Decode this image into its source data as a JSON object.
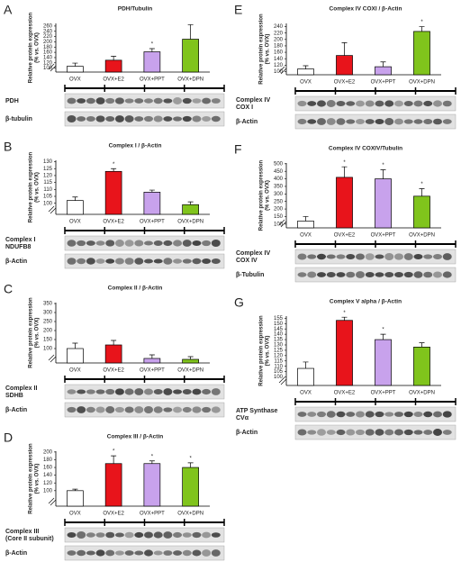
{
  "chart_data": [
    {
      "type": "bar",
      "panel": "A",
      "title": "PDH/Tubulin",
      "ylabel": [
        "Relative protein expression",
        "(% vs. OVX)"
      ],
      "categories": [
        "OVX",
        "OVX+E2",
        "OVX+PPT",
        "OVX+DPN"
      ],
      "values": [
        107,
        130,
        162,
        210
      ],
      "errors": [
        12,
        15,
        12,
        55
      ],
      "colors": [
        "#ffffff",
        "#e8141b",
        "#c8a2ec",
        "#80c41c"
      ],
      "ylim": [
        85,
        270
      ],
      "yticks": [
        100,
        120,
        140,
        160,
        180,
        200,
        220,
        240,
        260
      ],
      "significance": [
        false,
        false,
        true,
        false
      ],
      "significance_label": "*",
      "blot_labels": [
        [
          "PDH"
        ],
        [
          "β-tubulin"
        ]
      ]
    },
    {
      "type": "bar",
      "panel": "B",
      "title": "Complex I / β-Actin",
      "ylabel": [
        "Relative protein expression",
        "(% vs. OVX)"
      ],
      "categories": [
        "OVX",
        "OVX+E2",
        "OVX+PPT",
        "OVX+DPN"
      ],
      "values": [
        102,
        123,
        108,
        99
      ],
      "errors": [
        2.5,
        2,
        1.5,
        2
      ],
      "colors": [
        "#ffffff",
        "#e8141b",
        "#c8a2ec",
        "#80c41c"
      ],
      "ylim": [
        92,
        131
      ],
      "yticks": [
        100,
        105,
        110,
        115,
        120,
        125,
        130
      ],
      "significance": [
        false,
        true,
        false,
        false
      ],
      "significance_label": "*",
      "blot_labels": [
        [
          "Complex I",
          "NDUFB8"
        ],
        [
          "β-Actin"
        ]
      ]
    },
    {
      "type": "bar",
      "panel": "C",
      "title": "Complex II / β-Actin",
      "ylabel": [
        "Relative protein expression",
        "(% vs. OVX)"
      ],
      "categories": [
        "OVX",
        "OVX+E2",
        "OVX+PPT",
        "OVX+DPN"
      ],
      "values": [
        100,
        120,
        45,
        40
      ],
      "errors": [
        30,
        25,
        20,
        15
      ],
      "colors": [
        "#ffffff",
        "#e8141b",
        "#c8a2ec",
        "#80c41c"
      ],
      "ylim": [
        20,
        355
      ],
      "yticks": [
        100,
        150,
        200,
        250,
        300,
        350
      ],
      "significance": [
        false,
        false,
        false,
        false
      ],
      "significance_label": "*",
      "blot_labels": [
        [
          "Complex II",
          "SDHB"
        ],
        [
          "β-Actin"
        ]
      ]
    },
    {
      "type": "bar",
      "panel": "D",
      "title": "Complex III / β-Actin",
      "ylabel": [
        "Relative protein expression",
        "(% vs. OVX)"
      ],
      "categories": [
        "OVX",
        "OVX+E2",
        "OVX+PPT",
        "OVX+DPN"
      ],
      "values": [
        100,
        170,
        170,
        160
      ],
      "errors": [
        4,
        20,
        7,
        12
      ],
      "colors": [
        "#ffffff",
        "#e8141b",
        "#c8a2ec",
        "#80c41c"
      ],
      "ylim": [
        60,
        202
      ],
      "yticks": [
        100,
        120,
        140,
        160,
        180,
        200
      ],
      "significance": [
        false,
        true,
        true,
        true
      ],
      "significance_label": "*",
      "blot_labels": [
        [
          "Complex III",
          "(Core II subunit)"
        ],
        [
          "β-Actin"
        ]
      ]
    },
    {
      "type": "bar",
      "panel": "E",
      "title": "Complex IV COXI / β-Actin",
      "ylabel": [
        "Relative protein expression",
        "(% vs. OVX)"
      ],
      "categories": [
        "OVX",
        "OVX+E2",
        "OVX+PPT",
        "OVX+DPN"
      ],
      "values": [
        108,
        150,
        115,
        225
      ],
      "errors": [
        10,
        40,
        15,
        15
      ],
      "colors": [
        "#ffffff",
        "#e8141b",
        "#c8a2ec",
        "#80c41c"
      ],
      "ylim": [
        90,
        250
      ],
      "yticks": [
        100,
        120,
        140,
        160,
        180,
        200,
        220,
        240
      ],
      "significance": [
        false,
        false,
        false,
        true
      ],
      "significance_label": "*",
      "blot_labels": [
        [
          "Complex IV",
          "COX I"
        ],
        [
          "β-Actin"
        ]
      ]
    },
    {
      "type": "bar",
      "panel": "F",
      "title": "Complex IV COXIV/Tubulin",
      "ylabel": [
        "Relative protein expression",
        "(% vs. OVX)"
      ],
      "categories": [
        "OVX",
        "OVX+E2",
        "OVX+PPT",
        "OVX+DPN"
      ],
      "values": [
        120,
        410,
        400,
        285
      ],
      "errors": [
        30,
        70,
        60,
        50
      ],
      "colors": [
        "#ffffff",
        "#e8141b",
        "#c8a2ec",
        "#80c41c"
      ],
      "ylim": [
        75,
        505
      ],
      "yticks": [
        100,
        150,
        200,
        250,
        300,
        350,
        400,
        450,
        500
      ],
      "significance": [
        false,
        true,
        true,
        true
      ],
      "significance_label": "*",
      "blot_labels": [
        [
          "Complex IV",
          "COX IV"
        ],
        [
          "β-Tubulin"
        ]
      ]
    },
    {
      "type": "bar",
      "panel": "G",
      "title": "Complex V alpha / β-Actin",
      "ylabel": [
        "Relative protein expression",
        "(% vs. OVX)"
      ],
      "categories": [
        "OVX",
        "OVX+E2",
        "OVX+PPT",
        "OVX+DPN"
      ],
      "values": [
        108,
        153,
        135,
        128
      ],
      "errors": [
        6,
        3,
        5,
        4
      ],
      "colors": [
        "#ffffff",
        "#e8141b",
        "#c8a2ec",
        "#80c41c"
      ],
      "ylim": [
        92,
        157
      ],
      "yticks": [
        100,
        105,
        110,
        115,
        120,
        125,
        130,
        135,
        140,
        145,
        150,
        155
      ],
      "significance": [
        false,
        true,
        true,
        false
      ],
      "significance_label": "*",
      "blot_labels": [
        [
          "ATP Synthase",
          "CVα"
        ],
        [
          "β-Actin"
        ]
      ]
    }
  ]
}
